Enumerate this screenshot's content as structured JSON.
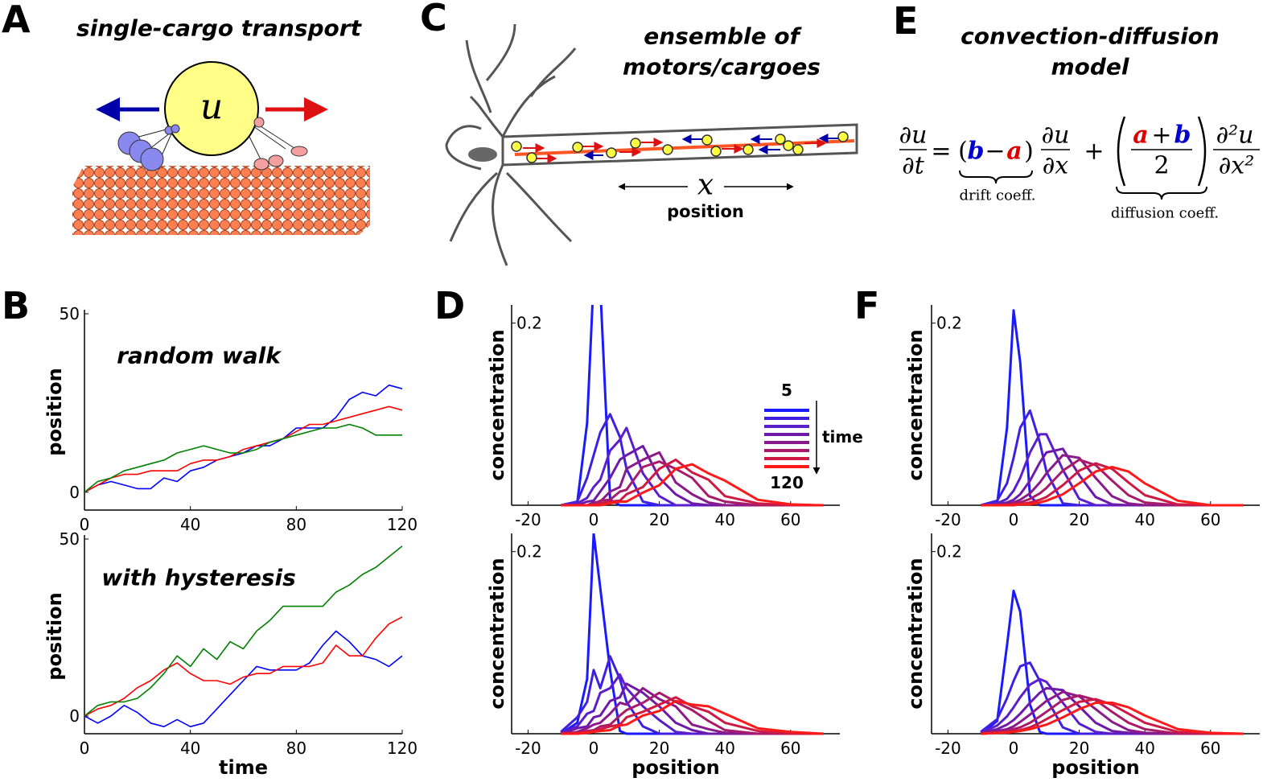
{
  "panel_labels": [
    "A",
    "B",
    "C",
    "D",
    "E",
    "F"
  ],
  "panel_a": {
    "title": "single-cargo transport",
    "symbol": "u"
  },
  "panel_c": {
    "title_lines": [
      "ensemble of",
      "motors/cargoes"
    ],
    "axis_symbol": "x",
    "axis_label": "position"
  },
  "panel_e": {
    "title_lines": [
      "convection-diffusion",
      "model"
    ],
    "equation": {
      "lhs_num": "∂u",
      "lhs_den": "∂t",
      "equals": "=",
      "open": "(",
      "b": "b",
      "minus": "−",
      "a": "a",
      "close": ")",
      "d1_num": "∂u",
      "d1_den": "∂x",
      "plus": "+",
      "frac_a": "a",
      "frac_plus": "+",
      "frac_b": "b",
      "frac_den": "2",
      "d2_num": "∂²u",
      "d2_den": "∂x²",
      "drift": "drift coeff.",
      "diffusion": "diffusion coeff."
    }
  },
  "chart_data": [
    {
      "type": "line",
      "annotation": "random walk",
      "ylabel": "position",
      "xlim": [
        0,
        120
      ],
      "xticks": [
        0,
        40,
        80,
        120
      ],
      "ylim": [
        -5,
        50
      ],
      "yticks": [
        0,
        50
      ],
      "x": [
        0,
        5,
        10,
        15,
        20,
        25,
        30,
        35,
        40,
        45,
        50,
        55,
        60,
        65,
        70,
        75,
        80,
        85,
        90,
        95,
        100,
        105,
        110,
        115,
        120
      ],
      "series": [
        {
          "color": "#0000ff",
          "values": [
            0,
            2,
            3,
            2,
            1,
            1,
            4,
            3,
            6,
            7,
            9,
            10,
            11,
            13,
            13,
            15,
            18,
            18,
            18,
            21,
            26,
            28,
            27,
            30,
            29
          ]
        },
        {
          "color": "#ff0000",
          "values": [
            0,
            2,
            4,
            5,
            5,
            6,
            6,
            6,
            8,
            9,
            9,
            10,
            12,
            13,
            14,
            15,
            17,
            19,
            19,
            20,
            21,
            22,
            23,
            24,
            23
          ]
        },
        {
          "color": "#008000",
          "values": [
            0,
            3,
            4,
            6,
            7,
            8,
            9,
            11,
            12,
            13,
            12,
            11,
            11,
            12,
            14,
            15,
            16,
            17,
            18,
            18,
            19,
            18,
            16,
            16,
            16
          ]
        }
      ]
    },
    {
      "type": "line",
      "annotation": "with hysteresis",
      "ylabel": "position",
      "xlabel": "time",
      "xlim": [
        0,
        120
      ],
      "xticks": [
        0,
        40,
        80,
        120
      ],
      "ylim": [
        -5,
        50
      ],
      "yticks": [
        0,
        50
      ],
      "x": [
        0,
        5,
        10,
        15,
        20,
        25,
        30,
        35,
        40,
        45,
        50,
        55,
        60,
        65,
        70,
        75,
        80,
        85,
        90,
        95,
        100,
        105,
        110,
        115,
        120
      ],
      "series": [
        {
          "color": "#0000ff",
          "values": [
            0,
            -2,
            0,
            3,
            1,
            -2,
            -3,
            -1,
            -3,
            -2,
            2,
            6,
            10,
            14,
            13,
            13,
            13,
            15,
            20,
            24,
            21,
            17,
            16,
            14,
            17
          ]
        },
        {
          "color": "#ff0000",
          "values": [
            0,
            2,
            3,
            5,
            8,
            10,
            13,
            15,
            12,
            10,
            10,
            9,
            11,
            12,
            12,
            14,
            14,
            14,
            15,
            20,
            17,
            17,
            22,
            26,
            28
          ]
        },
        {
          "color": "#008000",
          "values": [
            0,
            3,
            4,
            4,
            5,
            8,
            12,
            17,
            14,
            19,
            16,
            21,
            19,
            24,
            27,
            31,
            31,
            31,
            31,
            35,
            37,
            40,
            42,
            45,
            48
          ]
        }
      ]
    },
    {
      "type": "line",
      "ylabel": "concentration",
      "xlim": [
        -25,
        75
      ],
      "xticks": [
        -20,
        0,
        20,
        40,
        60
      ],
      "ylim": [
        0,
        0.22
      ],
      "yticks": [
        0.2
      ],
      "legend": {
        "title": "time",
        "start": 5,
        "end": 120
      },
      "x": [
        -10,
        -5,
        -2,
        0,
        2,
        5,
        8,
        10,
        15,
        20,
        25,
        30,
        35,
        40,
        50,
        60,
        70
      ],
      "series": [
        {
          "color": "#1a1aff",
          "values": [
            0,
            0.003,
            0.09,
            0.25,
            0.24,
            0.006,
            0,
            0,
            0,
            0,
            0,
            0,
            0,
            0,
            0,
            0,
            0
          ]
        },
        {
          "color": "#4020e0",
          "values": [
            0,
            0.004,
            0.03,
            0.055,
            0.08,
            0.1,
            0.075,
            0.04,
            0.004,
            0,
            0,
            0,
            0,
            0,
            0,
            0,
            0
          ]
        },
        {
          "color": "#5a1ecc",
          "values": [
            0,
            0.002,
            0.008,
            0.02,
            0.028,
            0.06,
            0.072,
            0.085,
            0.035,
            0.01,
            0,
            0,
            0,
            0,
            0,
            0,
            0
          ]
        },
        {
          "color": "#6e1aa8",
          "values": [
            0,
            0,
            0.004,
            0.005,
            0.015,
            0.03,
            0.05,
            0.055,
            0.065,
            0.03,
            0.012,
            0.002,
            0,
            0,
            0,
            0,
            0
          ]
        },
        {
          "color": "#8a1a8a",
          "values": [
            0,
            0,
            0,
            0.003,
            0.004,
            0.015,
            0.02,
            0.04,
            0.05,
            0.058,
            0.025,
            0.012,
            0.003,
            0,
            0,
            0,
            0
          ]
        },
        {
          "color": "#a81a6a",
          "values": [
            0,
            0,
            0,
            0.001,
            0.005,
            0.006,
            0.015,
            0.017,
            0.042,
            0.048,
            0.04,
            0.03,
            0.01,
            0.004,
            0,
            0,
            0
          ]
        },
        {
          "color": "#cc1a44",
          "values": [
            0,
            0,
            0,
            0,
            0.002,
            0.004,
            0.005,
            0.012,
            0.02,
            0.04,
            0.05,
            0.036,
            0.028,
            0.01,
            0.002,
            0,
            0
          ]
        },
        {
          "color": "#ff1a1a",
          "values": [
            0,
            0,
            0,
            0,
            0,
            0.002,
            0.004,
            0.004,
            0.014,
            0.022,
            0.04,
            0.045,
            0.035,
            0.027,
            0.006,
            0.001,
            0
          ]
        }
      ]
    },
    {
      "type": "line",
      "ylabel": "concentration",
      "xlabel": "position",
      "xlim": [
        -25,
        75
      ],
      "xticks": [
        -20,
        0,
        20,
        40,
        60
      ],
      "ylim": [
        0,
        0.22
      ],
      "yticks": [
        0.2
      ],
      "x": [
        -10,
        -5,
        -2,
        0,
        2,
        5,
        8,
        10,
        15,
        20,
        25,
        30,
        35,
        40,
        50,
        60,
        70
      ],
      "series": [
        {
          "color": "#1a1aff",
          "values": [
            0,
            0.012,
            0.06,
            0.22,
            0.16,
            0.07,
            0.003,
            0,
            0,
            0,
            0,
            0,
            0,
            0,
            0,
            0,
            0
          ]
        },
        {
          "color": "#4020e0",
          "values": [
            0.002,
            0.018,
            0.035,
            0.07,
            0.05,
            0.085,
            0.06,
            0.035,
            0.008,
            0,
            0,
            0,
            0,
            0,
            0,
            0,
            0
          ]
        },
        {
          "color": "#5a1ecc",
          "values": [
            0.001,
            0.008,
            0.022,
            0.025,
            0.045,
            0.05,
            0.065,
            0.05,
            0.03,
            0.015,
            0.002,
            0,
            0,
            0,
            0,
            0,
            0
          ]
        },
        {
          "color": "#6e1aa8",
          "values": [
            0,
            0.006,
            0.008,
            0.018,
            0.02,
            0.036,
            0.04,
            0.055,
            0.045,
            0.03,
            0.012,
            0.004,
            0,
            0,
            0,
            0,
            0
          ]
        },
        {
          "color": "#8a1a8a",
          "values": [
            0,
            0.002,
            0.006,
            0.01,
            0.012,
            0.022,
            0.034,
            0.032,
            0.05,
            0.038,
            0.03,
            0.01,
            0.005,
            0.001,
            0,
            0,
            0
          ]
        },
        {
          "color": "#a81a6a",
          "values": [
            0,
            0,
            0.003,
            0.004,
            0.008,
            0.01,
            0.02,
            0.026,
            0.034,
            0.045,
            0.035,
            0.026,
            0.014,
            0.004,
            0,
            0,
            0
          ]
        },
        {
          "color": "#cc1a44",
          "values": [
            0,
            0.001,
            0.002,
            0.003,
            0.005,
            0.008,
            0.01,
            0.018,
            0.024,
            0.032,
            0.04,
            0.03,
            0.024,
            0.012,
            0.003,
            0,
            0
          ]
        },
        {
          "color": "#ff1a1a",
          "values": [
            0,
            0,
            0.001,
            0.002,
            0.003,
            0.004,
            0.009,
            0.01,
            0.02,
            0.025,
            0.036,
            0.032,
            0.03,
            0.022,
            0.006,
            0.002,
            0
          ]
        }
      ]
    },
    {
      "type": "line",
      "ylabel": "concentration",
      "xlim": [
        -25,
        75
      ],
      "xticks": [
        -20,
        0,
        20,
        40,
        60
      ],
      "ylim": [
        0,
        0.22
      ],
      "yticks": [
        0.2
      ],
      "x": [
        -10,
        -5,
        -2,
        0,
        2,
        5,
        8,
        10,
        15,
        20,
        25,
        30,
        35,
        40,
        50,
        60,
        70
      ],
      "series": [
        {
          "color": "#1a1aff",
          "values": [
            0,
            0.002,
            0.085,
            0.214,
            0.157,
            0.01,
            0,
            0,
            0,
            0,
            0,
            0,
            0,
            0,
            0,
            0,
            0
          ]
        },
        {
          "color": "#4020e0",
          "values": [
            0,
            0.005,
            0.024,
            0.052,
            0.085,
            0.104,
            0.069,
            0.037,
            0.002,
            0,
            0,
            0,
            0,
            0,
            0,
            0,
            0
          ]
        },
        {
          "color": "#5a1ecc",
          "values": [
            0,
            0.002,
            0.007,
            0.016,
            0.03,
            0.058,
            0.078,
            0.078,
            0.039,
            0.007,
            0,
            0,
            0,
            0,
            0,
            0,
            0
          ]
        },
        {
          "color": "#6e1aa8",
          "values": [
            0,
            0.001,
            0.003,
            0.006,
            0.012,
            0.027,
            0.047,
            0.058,
            0.062,
            0.033,
            0.009,
            0.001,
            0,
            0,
            0,
            0,
            0
          ]
        },
        {
          "color": "#8a1a8a",
          "values": [
            0,
            0,
            0.001,
            0.003,
            0.006,
            0.013,
            0.025,
            0.035,
            0.055,
            0.052,
            0.03,
            0.01,
            0.002,
            0,
            0,
            0,
            0
          ]
        },
        {
          "color": "#a81a6a",
          "values": [
            0,
            0,
            0.001,
            0.002,
            0.003,
            0.007,
            0.013,
            0.019,
            0.038,
            0.05,
            0.044,
            0.027,
            0.011,
            0.003,
            0,
            0,
            0
          ]
        },
        {
          "color": "#cc1a44",
          "values": [
            0,
            0,
            0,
            0.001,
            0.001,
            0.003,
            0.006,
            0.009,
            0.022,
            0.038,
            0.046,
            0.04,
            0.025,
            0.011,
            0.001,
            0,
            0
          ]
        },
        {
          "color": "#ff1a1a",
          "values": [
            0,
            0,
            0,
            0,
            0.001,
            0.001,
            0.003,
            0.005,
            0.012,
            0.024,
            0.037,
            0.042,
            0.037,
            0.024,
            0.005,
            0,
            0
          ]
        }
      ]
    },
    {
      "type": "line",
      "ylabel": "concentration",
      "xlabel": "position",
      "xlim": [
        -25,
        75
      ],
      "xticks": [
        -20,
        0,
        20,
        40,
        60
      ],
      "ylim": [
        0,
        0.22
      ],
      "yticks": [
        0.2
      ],
      "x": [
        -10,
        -5,
        -2,
        0,
        2,
        5,
        8,
        10,
        15,
        20,
        25,
        30,
        35,
        40,
        50,
        60,
        70
      ],
      "series": [
        {
          "color": "#1a1aff",
          "values": [
            0,
            0.014,
            0.097,
            0.157,
            0.134,
            0.032,
            0.002,
            0,
            0,
            0,
            0,
            0,
            0,
            0,
            0,
            0,
            0
          ]
        },
        {
          "color": "#4020e0",
          "values": [
            0.002,
            0.016,
            0.039,
            0.058,
            0.074,
            0.078,
            0.058,
            0.039,
            0.007,
            0,
            0,
            0,
            0,
            0,
            0,
            0,
            0
          ]
        },
        {
          "color": "#5a1ecc",
          "values": [
            0.001,
            0.009,
            0.019,
            0.029,
            0.04,
            0.054,
            0.06,
            0.057,
            0.034,
            0.011,
            0.002,
            0,
            0,
            0,
            0,
            0,
            0
          ]
        },
        {
          "color": "#6e1aa8",
          "values": [
            0.001,
            0.005,
            0.01,
            0.015,
            0.022,
            0.034,
            0.045,
            0.05,
            0.048,
            0.03,
            0.012,
            0.003,
            0.001,
            0,
            0,
            0,
            0
          ]
        },
        {
          "color": "#8a1a8a",
          "values": [
            0.001,
            0.003,
            0.005,
            0.008,
            0.013,
            0.021,
            0.03,
            0.036,
            0.046,
            0.041,
            0.027,
            0.013,
            0.004,
            0.001,
            0,
            0,
            0
          ]
        },
        {
          "color": "#a81a6a",
          "values": [
            0,
            0.001,
            0.003,
            0.005,
            0.007,
            0.012,
            0.019,
            0.024,
            0.037,
            0.042,
            0.037,
            0.024,
            0.012,
            0.005,
            0,
            0,
            0
          ]
        },
        {
          "color": "#cc1a44",
          "values": [
            0,
            0.001,
            0.002,
            0.003,
            0.004,
            0.007,
            0.012,
            0.016,
            0.026,
            0.035,
            0.038,
            0.032,
            0.022,
            0.012,
            0.002,
            0,
            0
          ]
        },
        {
          "color": "#ff1a1a",
          "values": [
            0,
            0.001,
            0.001,
            0.002,
            0.003,
            0.005,
            0.008,
            0.01,
            0.018,
            0.027,
            0.034,
            0.034,
            0.029,
            0.02,
            0.005,
            0.001,
            0
          ]
        }
      ]
    }
  ]
}
